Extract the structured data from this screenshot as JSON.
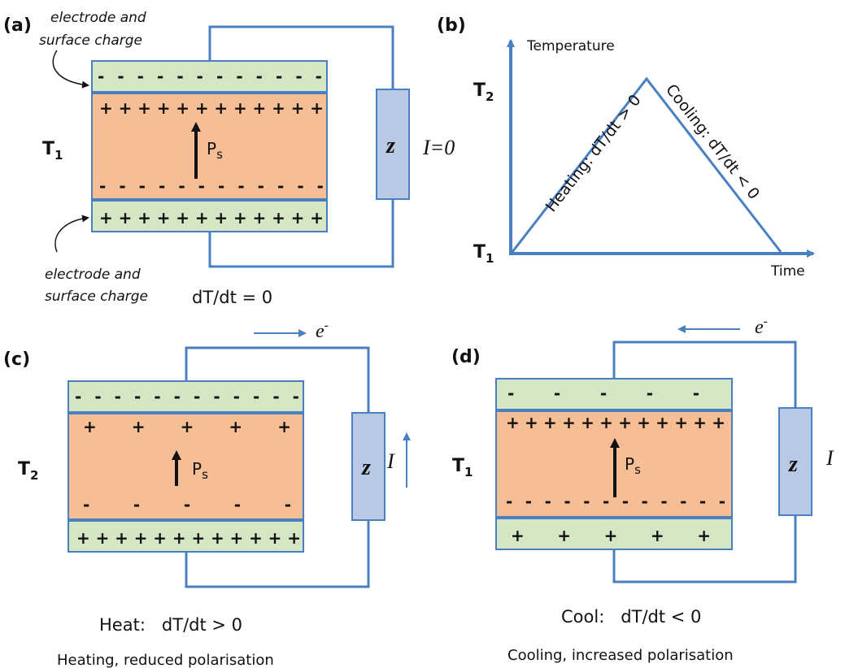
{
  "panels": {
    "a": {
      "label": "(a)",
      "temperature": "T",
      "temperature_sub": "1",
      "annotation_top_line1": "electrode and",
      "annotation_top_line2": "surface charge",
      "annotation_bottom_line1": "electrode and",
      "annotation_bottom_line2": "surface charge",
      "polarisation": "P",
      "polarisation_sub": "s",
      "impedance": "z",
      "current": "I=0",
      "caption": "dT/dt = 0"
    },
    "b": {
      "label": "(b)",
      "y_axis_label": "Temperature",
      "x_axis_label": "Time",
      "t_high": "T",
      "t_high_sub": "2",
      "t_low": "T",
      "t_low_sub": "1",
      "heating_label": "Heating: dT/dt > 0",
      "cooling_label": "Cooling: dT/dt < 0"
    },
    "c": {
      "label": "(c)",
      "temperature": "T",
      "temperature_sub": "2",
      "polarisation": "P",
      "polarisation_sub": "s",
      "impedance": "z",
      "current": "I",
      "electron": "e",
      "electron_sup": "-",
      "caption": "Heat:   dT/dt > 0",
      "subcaption": "Heating, reduced polarisation"
    },
    "d": {
      "label": "(d)",
      "temperature": "T",
      "temperature_sub": "1",
      "polarisation": "P",
      "polarisation_sub": "s",
      "impedance": "z",
      "current": "I",
      "electron": "e",
      "electron_sup": "-",
      "caption": "Cool:   dT/dt < 0",
      "subcaption": "Cooling, increased polarisation"
    }
  },
  "colors": {
    "wire": "#4a7fc1",
    "electrode": "#d4e6c3",
    "ferroelectric": "#f6be94",
    "resistor": "#b9c9e3"
  }
}
